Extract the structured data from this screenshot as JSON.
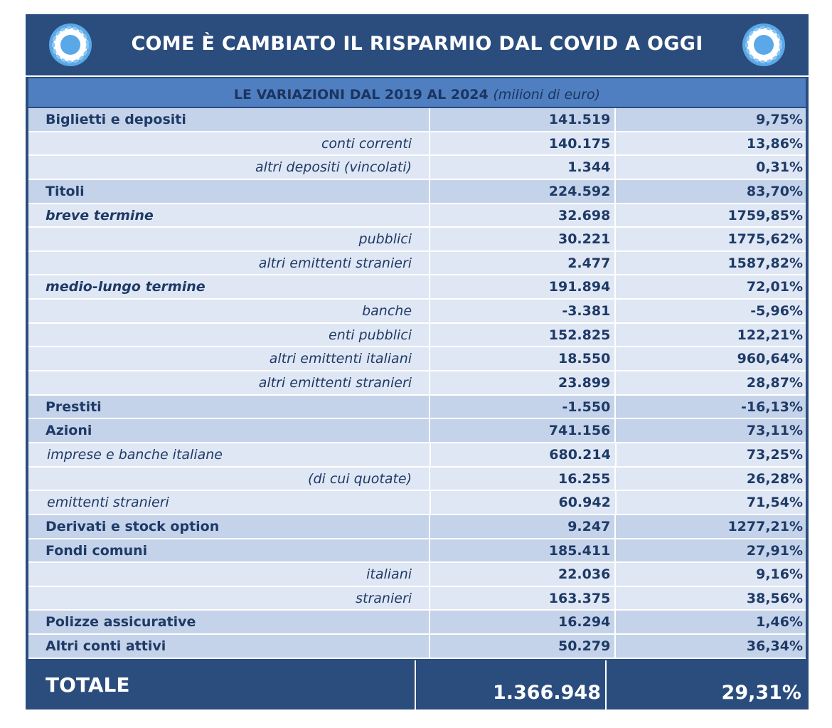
{
  "header": {
    "title": "COME È CAMBIATO IL RISPARMIO DAL COVID A OGGI"
  },
  "table": {
    "subtitle": "LE VARIAZIONI DAL 2019 AL 2024",
    "unit": "(milioni di euro)",
    "rows": [
      [
        "Biglietti e depositi",
        "141.519",
        "9,75%"
      ],
      [
        "conti correnti",
        "140.175",
        "13,86%"
      ],
      [
        "altri depositi (vincolati)",
        "1.344",
        "0,31%"
      ],
      [
        "Titoli",
        "224.592",
        "83,70%"
      ],
      [
        "breve termine",
        "32.698",
        "1759,85%"
      ],
      [
        "pubblici",
        "30.221",
        "1775,62%"
      ],
      [
        "altri emittenti stranieri",
        "2.477",
        "1587,82%"
      ],
      [
        "medio-lungo termine",
        "191.894",
        "72,01%"
      ],
      [
        "banche",
        "-3.381",
        "-5,96%"
      ],
      [
        "enti pubblici",
        "152.825",
        "122,21%"
      ],
      [
        "altri emittenti italiani",
        "18.550",
        "960,64%"
      ],
      [
        "altri emittenti stranieri",
        "23.899",
        "28,87%"
      ],
      [
        "Prestiti",
        "-1.550",
        "-16,13%"
      ],
      [
        "Azioni",
        "741.156",
        "73,11%"
      ],
      [
        "imprese e banche italiane",
        "680.214",
        "73,25%"
      ],
      [
        "(di cui quotate)",
        "16.255",
        "26,28%"
      ],
      [
        "emittenti stranieri",
        "60.942",
        "71,54%"
      ],
      [
        "Derivati e stock option",
        "9.247",
        "1277,21%"
      ],
      [
        "Fondi comuni",
        "185.411",
        "27,91%"
      ],
      [
        "italiani",
        "22.036",
        "9,16%"
      ],
      [
        "stranieri",
        "163.375",
        "38,56%"
      ],
      [
        "Polizze assicurative",
        "16.294",
        "1,46%"
      ],
      [
        "Altri conti attivi",
        "50.279",
        "36,34%"
      ]
    ],
    "total": [
      "TOTALE",
      "1.366.948",
      "29,31%"
    ]
  }
}
